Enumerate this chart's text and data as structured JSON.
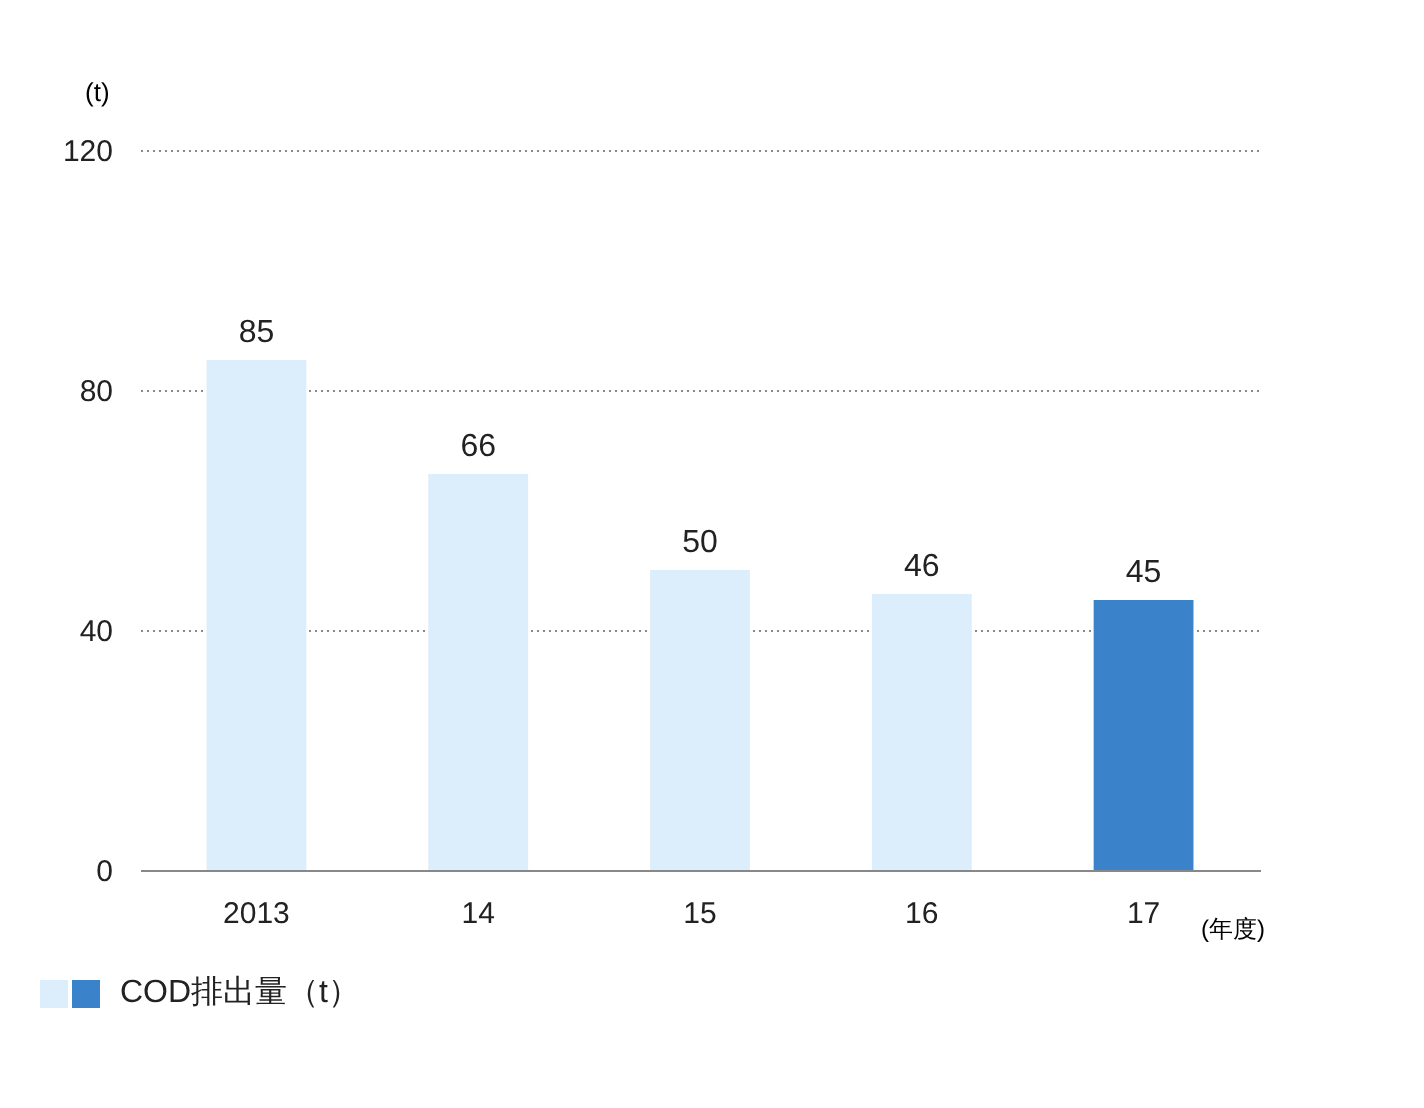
{
  "chart_data": {
    "type": "bar",
    "ylabel": "(t)",
    "xlabel": "(年度)",
    "categories": [
      "2013",
      "14",
      "15",
      "16",
      "17"
    ],
    "series": [
      {
        "name": "COD排出量（t）",
        "values": [
          85,
          66,
          50,
          46,
          45
        ]
      }
    ],
    "colors": [
      "#dcedfb",
      "#dcedfb",
      "#dcedfb",
      "#dcedfb",
      "#3a82c9"
    ],
    "ylim": [
      0,
      120
    ],
    "yticks": [
      0,
      40,
      80,
      120
    ],
    "grid": "y",
    "legend": "bottom left",
    "data_labels": true
  }
}
